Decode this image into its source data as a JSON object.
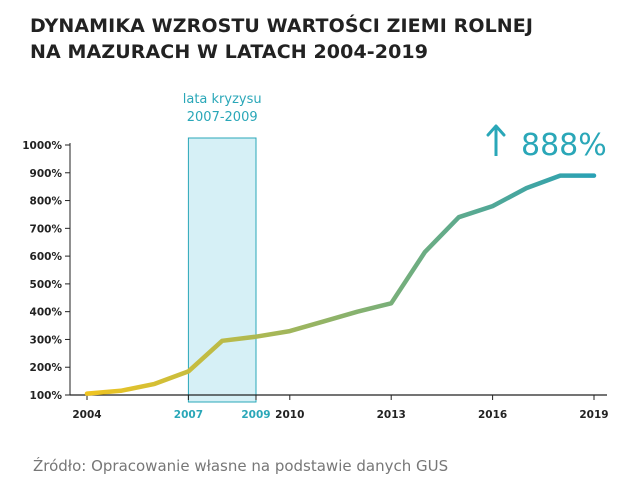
{
  "title": {
    "line1": "DYNAMIKA WZROSTU WARTOŚCI ZIEMI ROLNEJ",
    "line2": "NA MAZURACH W LATACH 2004-2019"
  },
  "source": "Źródło: Opracowanie własne na podstawie danych GUS",
  "colors": {
    "line_start": "#f0c420",
    "line_end": "#29a1b5",
    "accent": "#2aa7b8",
    "crisis_fill": "#d6f0f6",
    "crisis_stroke": "#2aa7b8",
    "axis": "#222222"
  },
  "chart_data": {
    "type": "line",
    "title": "DYNAMIKA WZROSTU WARTOŚCI ZIEMI ROLNEJ NA MAZURACH W LATACH 2004-2019",
    "xlabel": "",
    "ylabel": "",
    "x": [
      2004,
      2005,
      2006,
      2007,
      2008,
      2009,
      2010,
      2011,
      2012,
      2013,
      2014,
      2015,
      2016,
      2017,
      2018,
      2019
    ],
    "values": [
      105,
      115,
      140,
      185,
      295,
      310,
      330,
      365,
      400,
      430,
      615,
      740,
      780,
      845,
      890,
      890
    ],
    "ylim": [
      100,
      1000
    ],
    "xlim": [
      2004,
      2019
    ],
    "yticks": [
      100,
      200,
      300,
      400,
      500,
      600,
      700,
      800,
      900,
      1000
    ],
    "ytick_labels": [
      "100%",
      "200%",
      "300%",
      "400%",
      "500%",
      "600%",
      "700%",
      "800%",
      "900%",
      "1000%"
    ],
    "xticks": [
      2004,
      2007,
      2009,
      2010,
      2013,
      2016,
      2019
    ],
    "xtick_labels": [
      "2004",
      "2007",
      "2009",
      "2010",
      "2013",
      "2016",
      "2019"
    ],
    "highlighted_xticks": [
      "2007",
      "2009"
    ],
    "crisis_period": {
      "from": 2007,
      "to": 2009,
      "label_line1": "lata kryzysu",
      "label_line2": "2007-2009"
    },
    "growth_annotation": {
      "arrow": "↑",
      "value": "888%"
    },
    "grid": false
  }
}
